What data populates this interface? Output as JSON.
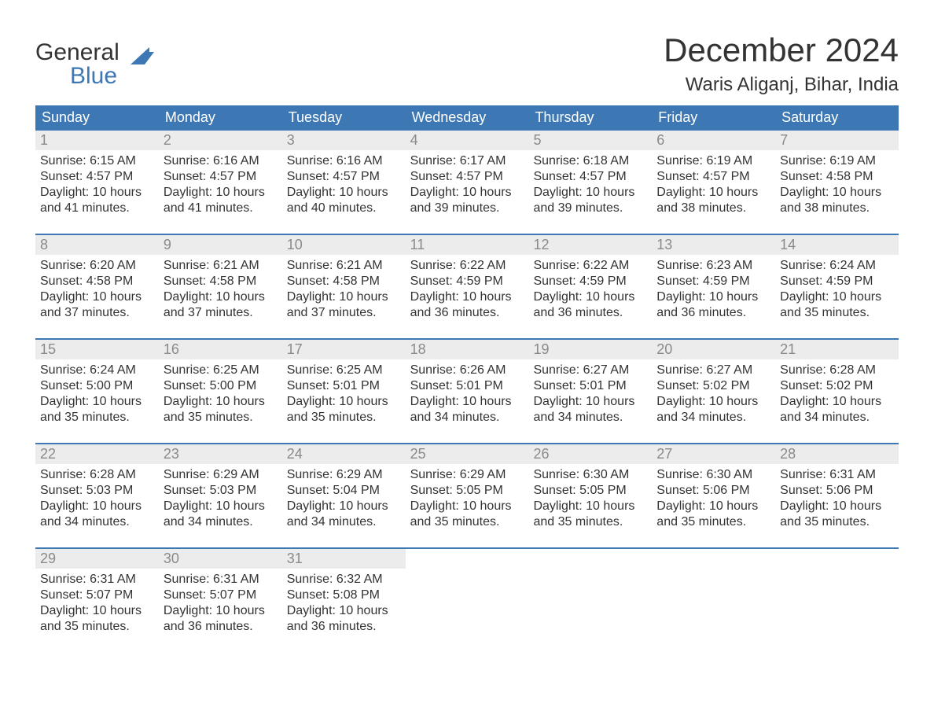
{
  "brand": {
    "line1": "General",
    "line2": "Blue",
    "flag_color": "#3d78b5"
  },
  "title": "December 2024",
  "location": "Waris Aliganj, Bihar, India",
  "colors": {
    "header_bg": "#3d78b5",
    "header_text": "#ffffff",
    "daynum_bg": "#ececec",
    "daynum_text": "#8a8a8a",
    "body_text": "#333333",
    "week_border": "#3d78b5",
    "page_bg": "#ffffff"
  },
  "typography": {
    "title_fontsize": 42,
    "location_fontsize": 24,
    "dow_fontsize": 18,
    "daynum_fontsize": 18,
    "body_fontsize": 16
  },
  "days_of_week": [
    "Sunday",
    "Monday",
    "Tuesday",
    "Wednesday",
    "Thursday",
    "Friday",
    "Saturday"
  ],
  "weeks": [
    [
      {
        "n": "1",
        "sunrise": "Sunrise: 6:15 AM",
        "sunset": "Sunset: 4:57 PM",
        "daylight": "Daylight: 10 hours and 41 minutes."
      },
      {
        "n": "2",
        "sunrise": "Sunrise: 6:16 AM",
        "sunset": "Sunset: 4:57 PM",
        "daylight": "Daylight: 10 hours and 41 minutes."
      },
      {
        "n": "3",
        "sunrise": "Sunrise: 6:16 AM",
        "sunset": "Sunset: 4:57 PM",
        "daylight": "Daylight: 10 hours and 40 minutes."
      },
      {
        "n": "4",
        "sunrise": "Sunrise: 6:17 AM",
        "sunset": "Sunset: 4:57 PM",
        "daylight": "Daylight: 10 hours and 39 minutes."
      },
      {
        "n": "5",
        "sunrise": "Sunrise: 6:18 AM",
        "sunset": "Sunset: 4:57 PM",
        "daylight": "Daylight: 10 hours and 39 minutes."
      },
      {
        "n": "6",
        "sunrise": "Sunrise: 6:19 AM",
        "sunset": "Sunset: 4:57 PM",
        "daylight": "Daylight: 10 hours and 38 minutes."
      },
      {
        "n": "7",
        "sunrise": "Sunrise: 6:19 AM",
        "sunset": "Sunset: 4:58 PM",
        "daylight": "Daylight: 10 hours and 38 minutes."
      }
    ],
    [
      {
        "n": "8",
        "sunrise": "Sunrise: 6:20 AM",
        "sunset": "Sunset: 4:58 PM",
        "daylight": "Daylight: 10 hours and 37 minutes."
      },
      {
        "n": "9",
        "sunrise": "Sunrise: 6:21 AM",
        "sunset": "Sunset: 4:58 PM",
        "daylight": "Daylight: 10 hours and 37 minutes."
      },
      {
        "n": "10",
        "sunrise": "Sunrise: 6:21 AM",
        "sunset": "Sunset: 4:58 PM",
        "daylight": "Daylight: 10 hours and 37 minutes."
      },
      {
        "n": "11",
        "sunrise": "Sunrise: 6:22 AM",
        "sunset": "Sunset: 4:59 PM",
        "daylight": "Daylight: 10 hours and 36 minutes."
      },
      {
        "n": "12",
        "sunrise": "Sunrise: 6:22 AM",
        "sunset": "Sunset: 4:59 PM",
        "daylight": "Daylight: 10 hours and 36 minutes."
      },
      {
        "n": "13",
        "sunrise": "Sunrise: 6:23 AM",
        "sunset": "Sunset: 4:59 PM",
        "daylight": "Daylight: 10 hours and 36 minutes."
      },
      {
        "n": "14",
        "sunrise": "Sunrise: 6:24 AM",
        "sunset": "Sunset: 4:59 PM",
        "daylight": "Daylight: 10 hours and 35 minutes."
      }
    ],
    [
      {
        "n": "15",
        "sunrise": "Sunrise: 6:24 AM",
        "sunset": "Sunset: 5:00 PM",
        "daylight": "Daylight: 10 hours and 35 minutes."
      },
      {
        "n": "16",
        "sunrise": "Sunrise: 6:25 AM",
        "sunset": "Sunset: 5:00 PM",
        "daylight": "Daylight: 10 hours and 35 minutes."
      },
      {
        "n": "17",
        "sunrise": "Sunrise: 6:25 AM",
        "sunset": "Sunset: 5:01 PM",
        "daylight": "Daylight: 10 hours and 35 minutes."
      },
      {
        "n": "18",
        "sunrise": "Sunrise: 6:26 AM",
        "sunset": "Sunset: 5:01 PM",
        "daylight": "Daylight: 10 hours and 34 minutes."
      },
      {
        "n": "19",
        "sunrise": "Sunrise: 6:27 AM",
        "sunset": "Sunset: 5:01 PM",
        "daylight": "Daylight: 10 hours and 34 minutes."
      },
      {
        "n": "20",
        "sunrise": "Sunrise: 6:27 AM",
        "sunset": "Sunset: 5:02 PM",
        "daylight": "Daylight: 10 hours and 34 minutes."
      },
      {
        "n": "21",
        "sunrise": "Sunrise: 6:28 AM",
        "sunset": "Sunset: 5:02 PM",
        "daylight": "Daylight: 10 hours and 34 minutes."
      }
    ],
    [
      {
        "n": "22",
        "sunrise": "Sunrise: 6:28 AM",
        "sunset": "Sunset: 5:03 PM",
        "daylight": "Daylight: 10 hours and 34 minutes."
      },
      {
        "n": "23",
        "sunrise": "Sunrise: 6:29 AM",
        "sunset": "Sunset: 5:03 PM",
        "daylight": "Daylight: 10 hours and 34 minutes."
      },
      {
        "n": "24",
        "sunrise": "Sunrise: 6:29 AM",
        "sunset": "Sunset: 5:04 PM",
        "daylight": "Daylight: 10 hours and 34 minutes."
      },
      {
        "n": "25",
        "sunrise": "Sunrise: 6:29 AM",
        "sunset": "Sunset: 5:05 PM",
        "daylight": "Daylight: 10 hours and 35 minutes."
      },
      {
        "n": "26",
        "sunrise": "Sunrise: 6:30 AM",
        "sunset": "Sunset: 5:05 PM",
        "daylight": "Daylight: 10 hours and 35 minutes."
      },
      {
        "n": "27",
        "sunrise": "Sunrise: 6:30 AM",
        "sunset": "Sunset: 5:06 PM",
        "daylight": "Daylight: 10 hours and 35 minutes."
      },
      {
        "n": "28",
        "sunrise": "Sunrise: 6:31 AM",
        "sunset": "Sunset: 5:06 PM",
        "daylight": "Daylight: 10 hours and 35 minutes."
      }
    ],
    [
      {
        "n": "29",
        "sunrise": "Sunrise: 6:31 AM",
        "sunset": "Sunset: 5:07 PM",
        "daylight": "Daylight: 10 hours and 35 minutes."
      },
      {
        "n": "30",
        "sunrise": "Sunrise: 6:31 AM",
        "sunset": "Sunset: 5:07 PM",
        "daylight": "Daylight: 10 hours and 36 minutes."
      },
      {
        "n": "31",
        "sunrise": "Sunrise: 6:32 AM",
        "sunset": "Sunset: 5:08 PM",
        "daylight": "Daylight: 10 hours and 36 minutes."
      },
      null,
      null,
      null,
      null
    ]
  ]
}
